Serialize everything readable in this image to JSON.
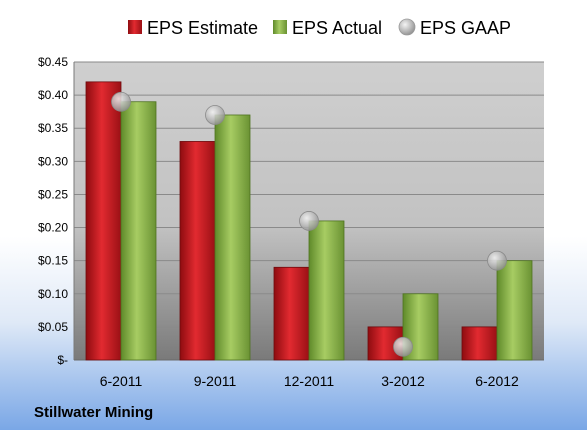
{
  "chart_data": {
    "type": "bar",
    "categories": [
      "6-2011",
      "9-2011",
      "12-2011",
      "3-2012",
      "6-2012"
    ],
    "series": [
      {
        "name": "EPS Estimate",
        "values": [
          0.42,
          0.33,
          0.14,
          0.05,
          0.05
        ]
      },
      {
        "name": "EPS Actual",
        "values": [
          0.39,
          0.37,
          0.21,
          0.1,
          0.15
        ]
      }
    ],
    "markers": {
      "name": "EPS GAAP",
      "values": [
        0.39,
        0.37,
        0.21,
        0.02,
        0.15
      ]
    },
    "ylim": [
      0,
      0.45
    ],
    "yticks": [
      0,
      0.05,
      0.1,
      0.15,
      0.2,
      0.25,
      0.3,
      0.35,
      0.4,
      0.45
    ],
    "ytick_labels": [
      "$-",
      "$0.05",
      "$0.10",
      "$0.15",
      "$0.20",
      "$0.25",
      "$0.30",
      "$0.35",
      "$0.40",
      "$0.45"
    ],
    "grid": true,
    "legend_position": "top"
  },
  "company_label": "Stillwater Mining",
  "colors": {
    "estimate": "#c0161c",
    "actual": "#8ab04a",
    "gaap": "#b4b4b4",
    "plot_bg": "#c8c8c8",
    "grid": "#8a8a8a"
  }
}
